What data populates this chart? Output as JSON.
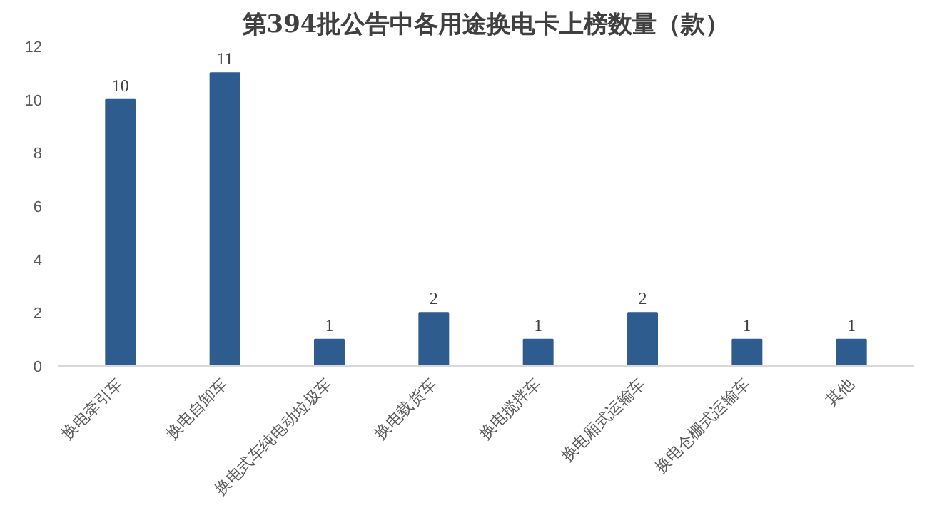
{
  "chart_data": {
    "type": "bar",
    "title": "第394批公告中各用途换电卡上榜数量（款）",
    "categories": [
      "换电牵引车",
      "换电自卸车",
      "换电式车纯电动垃圾车",
      "换电载货车",
      "换电搅拌车",
      "换电厢式运输车",
      "换电仓栅式运输车",
      "其他"
    ],
    "values": [
      10,
      11,
      1,
      2,
      1,
      2,
      1,
      1
    ],
    "color": "#2e5c8e",
    "ylim": [
      0,
      12
    ],
    "yticks": [
      0,
      2,
      4,
      6,
      8,
      10,
      12
    ],
    "grid": false,
    "data_labels": true
  }
}
